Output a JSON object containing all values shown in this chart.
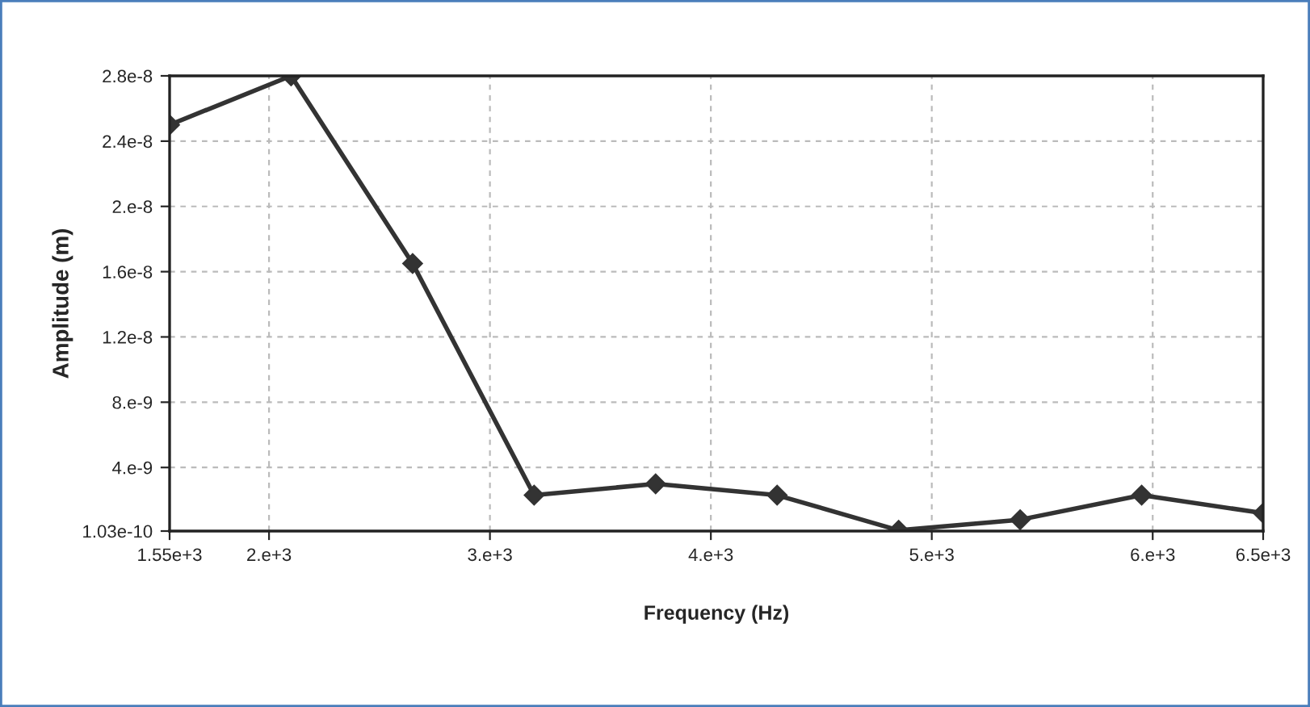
{
  "chart_data": {
    "type": "line",
    "xlabel": "Frequency (Hz)",
    "ylabel": "Amplitude (m)",
    "x": [
      1550,
      2100,
      2650,
      3200,
      3750,
      4300,
      4850,
      5400,
      5950,
      6500
    ],
    "series": [
      {
        "color": "#333333",
        "values": [
          2.5e-08,
          2.8e-08,
          1.65e-08,
          2.3e-09,
          3e-09,
          2.3e-09,
          1.5e-10,
          8e-10,
          2.3e-09,
          1.2e-09
        ]
      }
    ],
    "xlim": [
      1550,
      6500
    ],
    "xticks": [
      {
        "value": 1550,
        "label": "1.55e+3"
      },
      {
        "value": 2000,
        "label": "2.e+3"
      },
      {
        "value": 3000,
        "label": "3.e+3"
      },
      {
        "value": 4000,
        "label": "4.e+3"
      },
      {
        "value": 5000,
        "label": "5.e+3"
      },
      {
        "value": 6000,
        "label": "6.e+3"
      },
      {
        "value": 6500,
        "label": "6.5e+3"
      }
    ],
    "ylim": [
      1.03e-10,
      2.8e-08
    ],
    "yticks": [
      {
        "value": 1.03e-10,
        "label": "1.03e-10"
      },
      {
        "value": 4e-09,
        "label": "4.e-9"
      },
      {
        "value": 8e-09,
        "label": "8.e-9"
      },
      {
        "value": 1.2e-08,
        "label": "1.2e-8"
      },
      {
        "value": 1.6e-08,
        "label": "1.6e-8"
      },
      {
        "value": 2e-08,
        "label": "2.e-8"
      },
      {
        "value": 2.4e-08,
        "label": "2.4e-8"
      },
      {
        "value": 2.8e-08,
        "label": "2.8e-8"
      }
    ],
    "grid": true,
    "marker": "diamond",
    "line_style": "solid",
    "legend": false
  }
}
